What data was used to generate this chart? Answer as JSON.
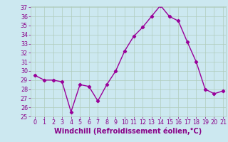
{
  "x": [
    0,
    1,
    2,
    3,
    4,
    5,
    6,
    7,
    8,
    9,
    10,
    11,
    12,
    13,
    14,
    15,
    16,
    17,
    18,
    19,
    20,
    21
  ],
  "y": [
    29.5,
    29.0,
    29.0,
    28.8,
    25.5,
    28.5,
    28.3,
    26.7,
    28.5,
    30.0,
    32.2,
    33.8,
    34.8,
    36.0,
    37.2,
    36.0,
    35.5,
    33.2,
    31.0,
    28.0,
    27.5,
    27.8
  ],
  "line_color": "#990099",
  "marker": "D",
  "marker_size": 2.2,
  "bg_color": "#cce8f0",
  "grid_color": "#b0ccbb",
  "xlabel": "Windchill (Refroidissement éolien,°C)",
  "ylim": [
    25,
    37
  ],
  "xlim": [
    -0.5,
    21.3
  ],
  "yticks": [
    25,
    26,
    27,
    28,
    29,
    30,
    31,
    32,
    33,
    34,
    35,
    36,
    37
  ],
  "xticks": [
    0,
    1,
    2,
    3,
    4,
    5,
    6,
    7,
    8,
    9,
    10,
    11,
    12,
    13,
    14,
    15,
    16,
    17,
    18,
    19,
    20,
    21
  ],
  "tick_label_color": "#880088",
  "tick_label_size": 5.8,
  "xlabel_size": 7.0,
  "line_width": 1.0
}
